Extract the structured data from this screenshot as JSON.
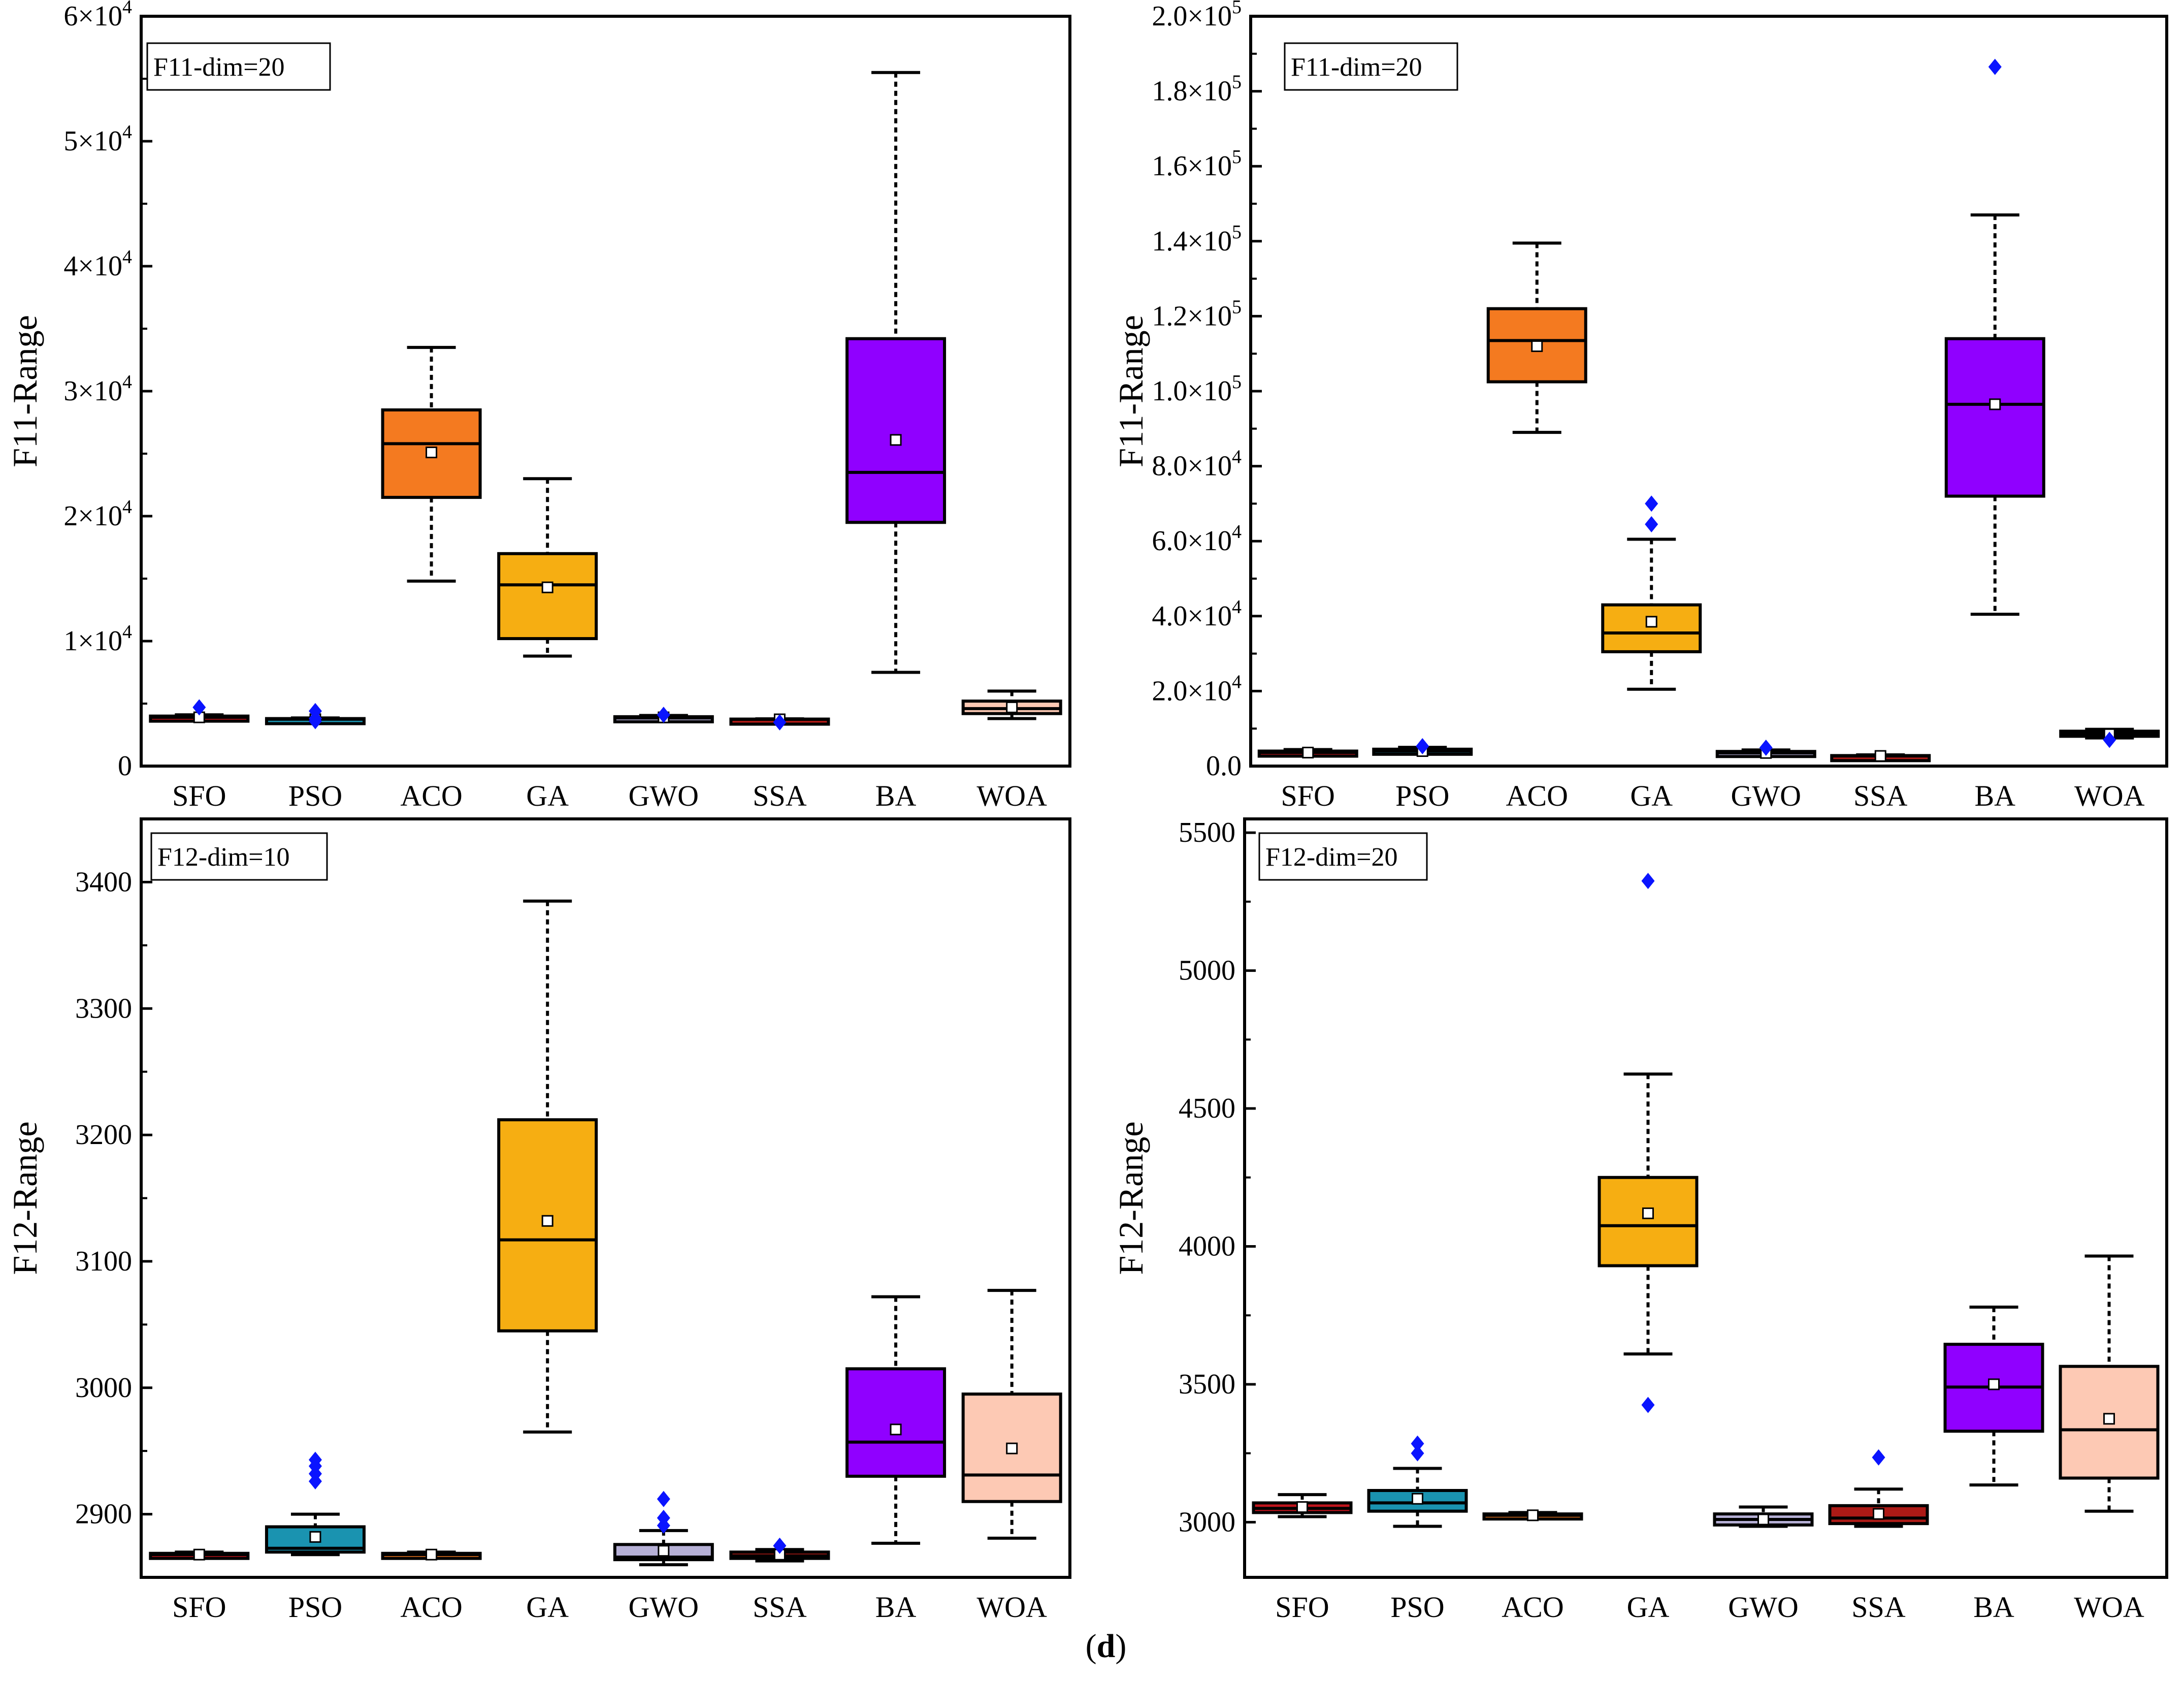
{
  "figure_caption": {
    "open": "(",
    "letter": "d",
    "close": ")"
  },
  "colors": {
    "SFO": "#c0141c",
    "PSO": "#1a93b0",
    "ACO": "#f47a20",
    "GA": "#f6ae12",
    "GWO": "#b6b0d6",
    "SSA": "#ad1a16",
    "BA": "#9000ff",
    "WOA": "#fdc9b4",
    "outlier": "#0a14ff"
  },
  "chart_data": [
    {
      "type": "box",
      "title": "F11-dim=20",
      "ylabel": "F11-Range",
      "categories": [
        "SFO",
        "PSO",
        "ACO",
        "GA",
        "GWO",
        "SSA",
        "BA",
        "WOA"
      ],
      "ylim": [
        0,
        60000
      ],
      "tick_values": [
        0,
        10000,
        20000,
        30000,
        40000,
        50000,
        60000
      ],
      "tick_mantissa": [
        "0",
        "1",
        "2",
        "3",
        "4",
        "5",
        "6"
      ],
      "tick_exp": "4",
      "series": [
        {
          "name": "SFO",
          "whisker_low": 3600,
          "q1": 3800,
          "median": 3900,
          "q3": 4000,
          "whisker_high": 4100,
          "mean": 3900,
          "outliers": [
            4700
          ]
        },
        {
          "name": "PSO",
          "whisker_low": 3650,
          "q1": 3700,
          "median": 3750,
          "q3": 3800,
          "whisker_high": 3850,
          "mean": 3750,
          "outliers": [
            3600,
            3800,
            4400
          ]
        },
        {
          "name": "ACO",
          "whisker_low": 14800,
          "q1": 21500,
          "median": 25800,
          "q3": 28500,
          "whisker_high": 33500,
          "mean": 25100,
          "outliers": []
        },
        {
          "name": "GA",
          "whisker_low": 8800,
          "q1": 10200,
          "median": 14500,
          "q3": 17000,
          "whisker_high": 23000,
          "mean": 14300,
          "outliers": []
        },
        {
          "name": "GWO",
          "whisker_low": 3700,
          "q1": 3800,
          "median": 3850,
          "q3": 3950,
          "whisker_high": 4050,
          "mean": 3900,
          "outliers": [
            4100
          ]
        },
        {
          "name": "SSA",
          "whisker_low": 3700,
          "q1": 3720,
          "median": 3740,
          "q3": 3760,
          "whisker_high": 3780,
          "mean": 3740,
          "outliers": [
            3500
          ]
        },
        {
          "name": "BA",
          "whisker_low": 7500,
          "q1": 19500,
          "median": 23500,
          "q3": 34200,
          "whisker_high": 55500,
          "mean": 26100,
          "outliers": []
        },
        {
          "name": "WOA",
          "whisker_low": 3800,
          "q1": 4200,
          "median": 4600,
          "q3": 5200,
          "whisker_high": 6000,
          "mean": 4700,
          "outliers": []
        }
      ]
    },
    {
      "type": "box",
      "title": "F11-dim=20",
      "ylabel": "F11-Range",
      "categories": [
        "SFO",
        "PSO",
        "ACO",
        "GA",
        "GWO",
        "SSA",
        "BA",
        "WOA"
      ],
      "ylim": [
        0,
        200000
      ],
      "tick_values": [
        0,
        20000,
        40000,
        60000,
        80000,
        100000,
        120000,
        140000,
        160000,
        180000,
        200000
      ],
      "tick_mantissa": [
        "0.0",
        "2.0",
        "4.0",
        "6.0",
        "8.0",
        "1.0",
        "1.2",
        "1.4",
        "1.6",
        "1.8",
        "2.0"
      ],
      "tick_exps": [
        "",
        "4",
        "4",
        "4",
        "4",
        "5",
        "5",
        "5",
        "5",
        "5",
        "5"
      ],
      "series": [
        {
          "name": "SFO",
          "whisker_low": 2800,
          "q1": 3200,
          "median": 3600,
          "q3": 4000,
          "whisker_high": 4400,
          "mean": 3600,
          "outliers": []
        },
        {
          "name": "PSO",
          "whisker_low": 3200,
          "q1": 3600,
          "median": 4000,
          "q3": 4500,
          "whisker_high": 5000,
          "mean": 4000,
          "outliers": [
            5300
          ]
        },
        {
          "name": "ACO",
          "whisker_low": 89000,
          "q1": 102500,
          "median": 113500,
          "q3": 122000,
          "whisker_high": 139500,
          "mean": 112000,
          "outliers": []
        },
        {
          "name": "GA",
          "whisker_low": 20500,
          "q1": 30500,
          "median": 35500,
          "q3": 43000,
          "whisker_high": 60500,
          "mean": 38500,
          "outliers": [
            64500,
            70000
          ]
        },
        {
          "name": "GWO",
          "whisker_low": 2800,
          "q1": 3200,
          "median": 3500,
          "q3": 3900,
          "whisker_high": 4300,
          "mean": 3500,
          "outliers": [
            4900
          ]
        },
        {
          "name": "SSA",
          "whisker_low": 2400,
          "q1": 2600,
          "median": 2700,
          "q3": 2800,
          "whisker_high": 3000,
          "mean": 2700,
          "outliers": []
        },
        {
          "name": "BA",
          "whisker_low": 40500,
          "q1": 72000,
          "median": 96500,
          "q3": 114000,
          "whisker_high": 147000,
          "mean": 96500,
          "outliers": [
            186500
          ]
        },
        {
          "name": "WOA",
          "whisker_low": 7500,
          "q1": 8000,
          "median": 8700,
          "q3": 9300,
          "whisker_high": 9800,
          "mean": 8500,
          "outliers": [
            7000
          ]
        }
      ]
    },
    {
      "type": "box",
      "title": "F12-dim=10",
      "ylabel": "F12-Range",
      "categories": [
        "SFO",
        "PSO",
        "ACO",
        "GA",
        "GWO",
        "SSA",
        "BA",
        "WOA"
      ],
      "ylim": [
        2850,
        3450
      ],
      "tick_values": [
        2900,
        3000,
        3100,
        3200,
        3300,
        3400
      ],
      "tick_labels": [
        "2900",
        "3000",
        "3100",
        "3200",
        "3300",
        "3400"
      ],
      "series": [
        {
          "name": "SFO",
          "whisker_low": 2866,
          "q1": 2867,
          "median": 2868,
          "q3": 2869,
          "whisker_high": 2870,
          "mean": 2868,
          "outliers": []
        },
        {
          "name": "PSO",
          "whisker_low": 2868,
          "q1": 2870,
          "median": 2873,
          "q3": 2890,
          "whisker_high": 2900,
          "mean": 2882,
          "outliers": [
            2926,
            2932,
            2938,
            2943
          ]
        },
        {
          "name": "ACO",
          "whisker_low": 2866,
          "q1": 2867,
          "median": 2868,
          "q3": 2869,
          "whisker_high": 2870,
          "mean": 2868,
          "outliers": []
        },
        {
          "name": "GA",
          "whisker_low": 2965,
          "q1": 3045,
          "median": 3117,
          "q3": 3212,
          "whisker_high": 3385,
          "mean": 3132,
          "outliers": []
        },
        {
          "name": "GWO",
          "whisker_low": 2860,
          "q1": 2864,
          "median": 2866,
          "q3": 2876,
          "whisker_high": 2887,
          "mean": 2871,
          "outliers": [
            2891,
            2897,
            2912
          ]
        },
        {
          "name": "SSA",
          "whisker_low": 2863,
          "q1": 2865,
          "median": 2867,
          "q3": 2870,
          "whisker_high": 2872,
          "mean": 2868,
          "outliers": [
            2875
          ]
        },
        {
          "name": "BA",
          "whisker_low": 2877,
          "q1": 2930,
          "median": 2957,
          "q3": 3015,
          "whisker_high": 3072,
          "mean": 2967,
          "outliers": []
        },
        {
          "name": "WOA",
          "whisker_low": 2881,
          "q1": 2910,
          "median": 2931,
          "q3": 2995,
          "whisker_high": 3077,
          "mean": 2952,
          "outliers": []
        }
      ]
    },
    {
      "type": "box",
      "title": "F12-dim=20",
      "ylabel": "F12-Range",
      "categories": [
        "SFO",
        "PSO",
        "ACO",
        "GA",
        "GWO",
        "SSA",
        "BA",
        "WOA"
      ],
      "ylim": [
        2800,
        5550
      ],
      "tick_values": [
        3000,
        3500,
        4000,
        4500,
        5000,
        5500
      ],
      "tick_labels": [
        "3000",
        "3500",
        "4000",
        "4500",
        "5000",
        "5500"
      ],
      "series": [
        {
          "name": "SFO",
          "whisker_low": 3020,
          "q1": 3035,
          "median": 3050,
          "q3": 3070,
          "whisker_high": 3100,
          "mean": 3055,
          "outliers": []
        },
        {
          "name": "PSO",
          "whisker_low": 2985,
          "q1": 3040,
          "median": 3070,
          "q3": 3115,
          "whisker_high": 3195,
          "mean": 3085,
          "outliers": [
            3250,
            3285
          ]
        },
        {
          "name": "ACO",
          "whisker_low": 3020,
          "q1": 3022,
          "median": 3025,
          "q3": 3030,
          "whisker_high": 3035,
          "mean": 3025,
          "outliers": []
        },
        {
          "name": "GA",
          "whisker_low": 3610,
          "q1": 3930,
          "median": 4075,
          "q3": 4250,
          "whisker_high": 4625,
          "mean": 4120,
          "outliers": [
            3425,
            5325
          ]
        },
        {
          "name": "GWO",
          "whisker_low": 2985,
          "q1": 2990,
          "median": 3010,
          "q3": 3030,
          "whisker_high": 3055,
          "mean": 3010,
          "outliers": []
        },
        {
          "name": "SSA",
          "whisker_low": 2985,
          "q1": 2995,
          "median": 3015,
          "q3": 3060,
          "whisker_high": 3120,
          "mean": 3030,
          "outliers": [
            3235
          ]
        },
        {
          "name": "BA",
          "whisker_low": 3135,
          "q1": 3330,
          "median": 3490,
          "q3": 3645,
          "whisker_high": 3780,
          "mean": 3500,
          "outliers": []
        },
        {
          "name": "WOA",
          "whisker_low": 3040,
          "q1": 3160,
          "median": 3335,
          "q3": 3565,
          "whisker_high": 3965,
          "mean": 3375,
          "outliers": []
        }
      ]
    }
  ]
}
